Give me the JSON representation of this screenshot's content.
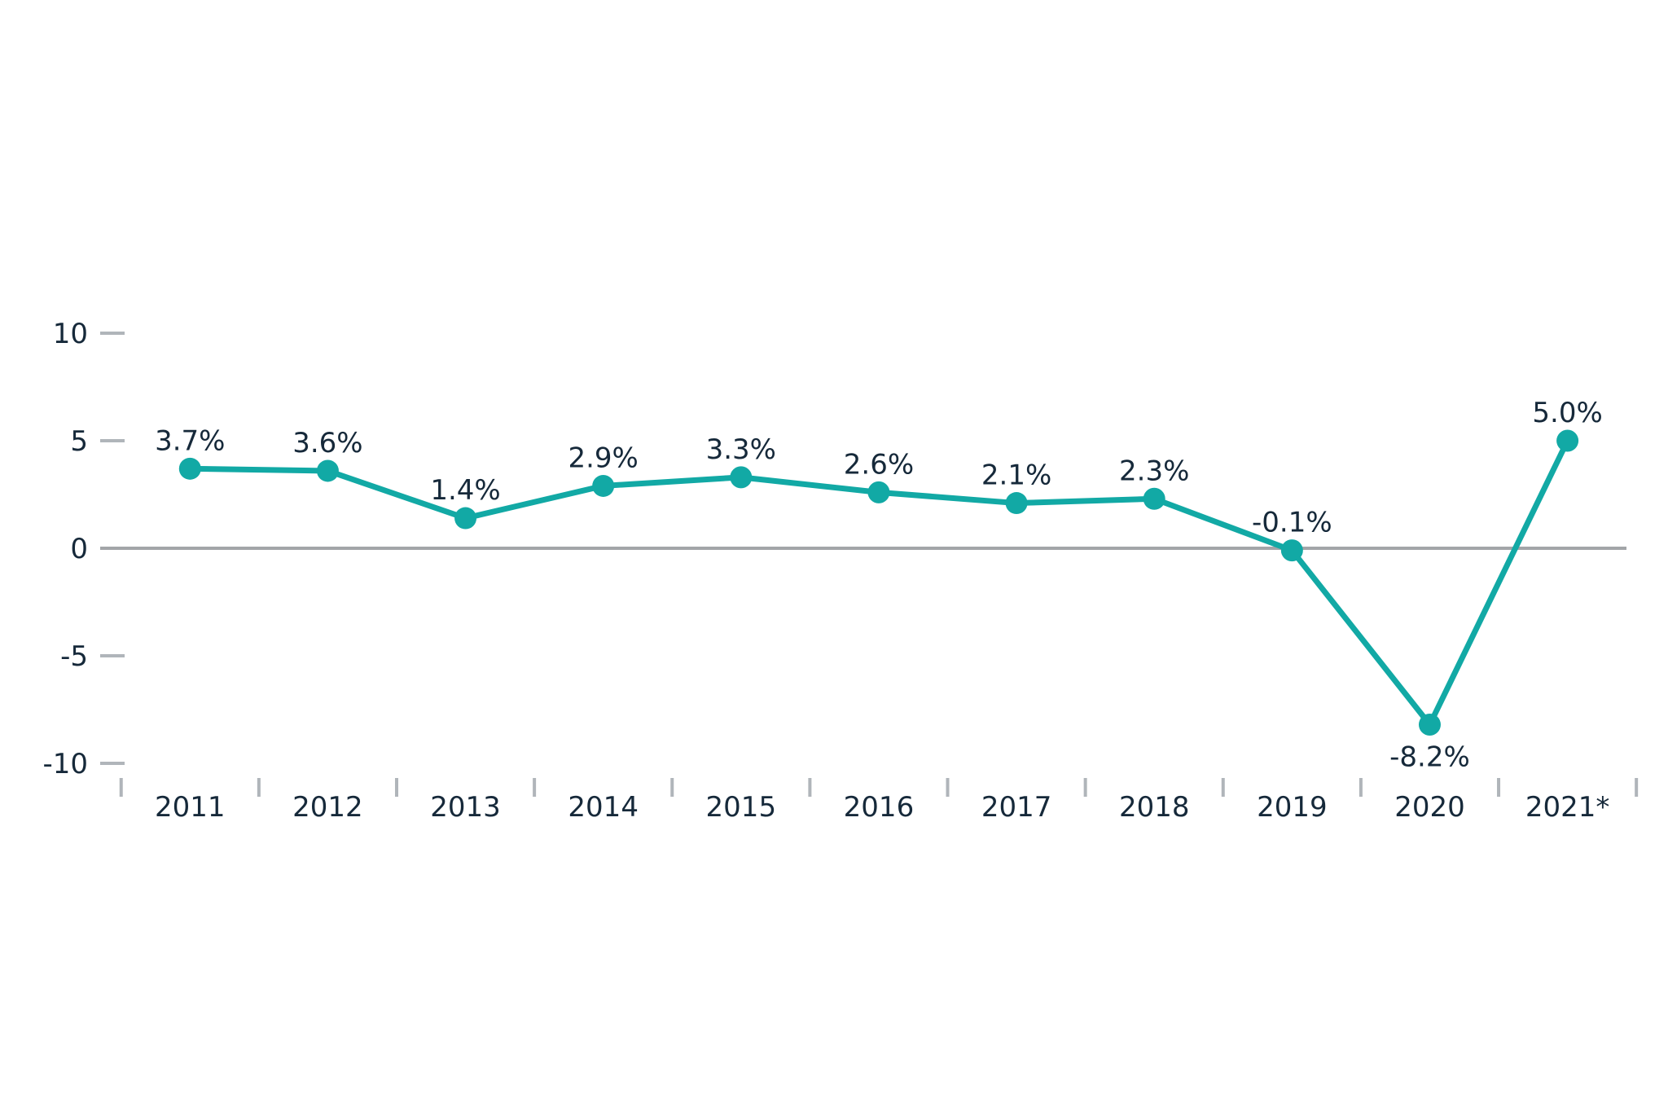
{
  "chart_data": {
    "type": "line",
    "title": "",
    "xlabel": "",
    "ylabel": "",
    "categories": [
      "2011",
      "2012",
      "2013",
      "2014",
      "2015",
      "2016",
      "2017",
      "2018",
      "2019",
      "2020",
      "2021*"
    ],
    "values": [
      3.7,
      3.6,
      1.4,
      2.9,
      3.3,
      2.6,
      2.1,
      2.3,
      -0.1,
      -8.2,
      5.0
    ],
    "point_labels": [
      "3.7%",
      "3.6%",
      "1.4%",
      "2.9%",
      "3.3%",
      "2.6%",
      "2.1%",
      "2.3%",
      "-0.1%",
      "-8.2%",
      "5.0%"
    ],
    "point_label_positions": [
      "above",
      "above",
      "above",
      "above",
      "above",
      "above",
      "above",
      "above",
      "above",
      "below",
      "above"
    ],
    "yticks": [
      10,
      5,
      0,
      -5,
      -10
    ],
    "ylim": [
      -10,
      10
    ],
    "grid": false,
    "legend": "none",
    "colors": {
      "line": "#12a9a5",
      "marker": "#12a9a5",
      "zero_line": "#a2a5a8",
      "tick": "#b0b5ba",
      "text": "#16293a"
    }
  }
}
